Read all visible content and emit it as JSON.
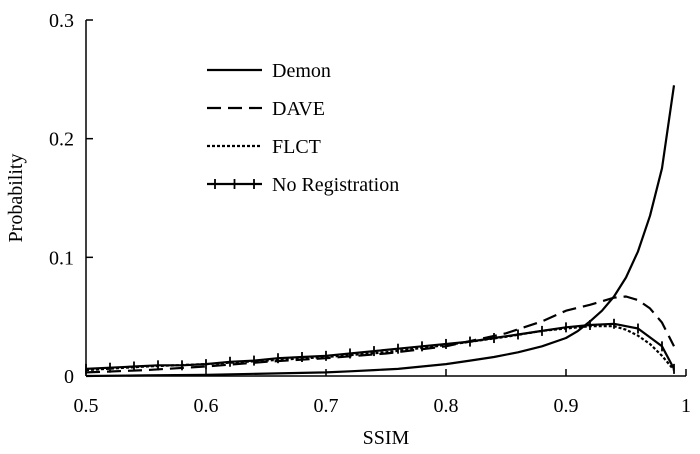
{
  "chart_data": {
    "type": "line",
    "xlabel": "SSIM",
    "ylabel": "Probability",
    "xlim": [
      0.5,
      1.0
    ],
    "ylim": [
      0,
      0.3
    ],
    "xticks": [
      0.5,
      0.6,
      0.7,
      0.8,
      0.9,
      1.0
    ],
    "xtick_labels": [
      "0.5",
      "0.6",
      "0.7",
      "0.8",
      "0.9",
      "1"
    ],
    "yticks": [
      0,
      0.1,
      0.2,
      0.3
    ],
    "ytick_labels": [
      "0",
      "0.1",
      "0.2",
      "0.3"
    ],
    "grid": false,
    "legend_position": "top-left",
    "series": [
      {
        "name": "Demon",
        "style": "solid",
        "x": [
          0.5,
          0.55,
          0.6,
          0.65,
          0.7,
          0.72,
          0.74,
          0.76,
          0.78,
          0.8,
          0.82,
          0.84,
          0.86,
          0.88,
          0.9,
          0.91,
          0.92,
          0.93,
          0.94,
          0.95,
          0.96,
          0.97,
          0.98,
          0.99
        ],
        "y": [
          0.0,
          0.0005,
          0.001,
          0.002,
          0.003,
          0.004,
          0.005,
          0.006,
          0.008,
          0.01,
          0.013,
          0.016,
          0.02,
          0.025,
          0.032,
          0.038,
          0.046,
          0.055,
          0.067,
          0.083,
          0.105,
          0.135,
          0.175,
          0.245
        ]
      },
      {
        "name": "DAVE",
        "style": "dashed",
        "x": [
          0.5,
          0.55,
          0.6,
          0.65,
          0.7,
          0.75,
          0.8,
          0.85,
          0.88,
          0.9,
          0.92,
          0.94,
          0.95,
          0.96,
          0.97,
          0.98,
          0.99
        ],
        "y": [
          0.003,
          0.005,
          0.008,
          0.012,
          0.015,
          0.019,
          0.025,
          0.036,
          0.046,
          0.055,
          0.06,
          0.066,
          0.067,
          0.064,
          0.057,
          0.045,
          0.025
        ]
      },
      {
        "name": "FLCT",
        "style": "dotted",
        "x": [
          0.5,
          0.55,
          0.6,
          0.65,
          0.7,
          0.75,
          0.8,
          0.85,
          0.88,
          0.9,
          0.92,
          0.94,
          0.95,
          0.96,
          0.97,
          0.98,
          0.99
        ],
        "y": [
          0.005,
          0.008,
          0.01,
          0.013,
          0.016,
          0.02,
          0.026,
          0.033,
          0.038,
          0.04,
          0.042,
          0.042,
          0.039,
          0.034,
          0.027,
          0.017,
          0.005
        ]
      },
      {
        "name": "No Registration",
        "style": "solid-markers",
        "x": [
          0.5,
          0.52,
          0.54,
          0.56,
          0.58,
          0.6,
          0.62,
          0.64,
          0.66,
          0.68,
          0.7,
          0.72,
          0.74,
          0.76,
          0.78,
          0.8,
          0.82,
          0.84,
          0.86,
          0.88,
          0.9,
          0.92,
          0.94,
          0.96,
          0.98,
          0.99
        ],
        "y": [
          0.006,
          0.007,
          0.008,
          0.009,
          0.009,
          0.01,
          0.012,
          0.013,
          0.015,
          0.016,
          0.017,
          0.019,
          0.021,
          0.023,
          0.025,
          0.027,
          0.029,
          0.032,
          0.035,
          0.038,
          0.041,
          0.043,
          0.044,
          0.04,
          0.025,
          0.006
        ]
      }
    ]
  }
}
